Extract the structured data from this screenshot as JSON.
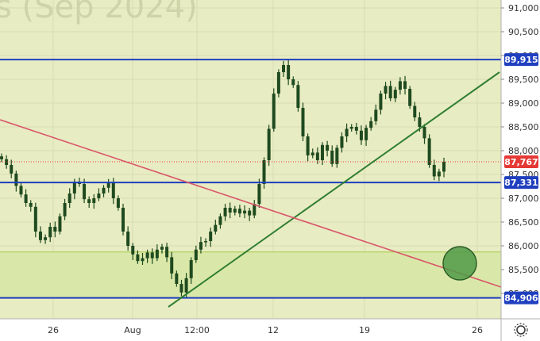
{
  "watermark": "s (Sep 2024)",
  "chart_data": {
    "type": "candlestick",
    "y_axis": {
      "range": [
        84700,
        91150
      ],
      "ticks": [
        {
          "value": 91000,
          "label": "91,000"
        },
        {
          "value": 90500,
          "label": "90,500"
        },
        {
          "value": 90000,
          "label": "90,000"
        },
        {
          "value": 89500,
          "label": "89,500"
        },
        {
          "value": 89000,
          "label": "89,000"
        },
        {
          "value": 88500,
          "label": "88,500"
        },
        {
          "value": 88000,
          "label": "88,000"
        },
        {
          "value": 87500,
          "label": "87,500"
        },
        {
          "value": 87000,
          "label": "87,000"
        },
        {
          "value": 86500,
          "label": "86,500"
        },
        {
          "value": 86000,
          "label": "86,000"
        },
        {
          "value": 85500,
          "label": "85,500"
        },
        {
          "value": 85000,
          "label": "85,000"
        }
      ]
    },
    "x_axis": {
      "ticks": [
        "26",
        "Aug",
        "12:00",
        "12",
        "19",
        "26"
      ]
    },
    "levels": [
      {
        "label": "89,915",
        "value": 89915,
        "color": "#1f3fbf"
      },
      {
        "label": "87,331",
        "value": 87331,
        "color": "#1f3fbf"
      },
      {
        "label": "84,906",
        "value": 84906,
        "color": "#1f3fbf"
      }
    ],
    "current_price": {
      "label": "87,767",
      "value": 87767,
      "color": "#e53935"
    },
    "zone": {
      "from": 84906,
      "to": 85870,
      "color": "#d9e8a8",
      "edge_color": "#a6c94a"
    },
    "target_marker": {
      "value": 85600,
      "color": "#4f9a47"
    },
    "trendlines": [
      {
        "name": "support",
        "color": "#2e7d32"
      },
      {
        "name": "resistance",
        "color": "#d9546a"
      }
    ],
    "prices": [
      87820,
      87700,
      87520,
      87260,
      87080,
      86900,
      86820,
      86300,
      86120,
      86180,
      86400,
      86300,
      86620,
      86900,
      87100,
      87350,
      87300,
      86980,
      86900,
      87000,
      87100,
      87220,
      87320,
      87000,
      86800,
      86300,
      86000,
      85820,
      85680,
      85740,
      85860,
      85740,
      85920,
      85980,
      85760,
      85420,
      85200,
      85020,
      85320,
      85700,
      85920,
      86080,
      86100,
      86300,
      86440,
      86620,
      86800,
      86700,
      86780,
      86680,
      86740,
      86640,
      86880,
      87300,
      87800,
      88460,
      89200,
      89650,
      89800,
      89500,
      89380,
      88900,
      88300,
      87900,
      87960,
      87800,
      88120,
      88000,
      87720,
      88060,
      88300,
      88460,
      88500,
      88420,
      88220,
      88480,
      88620,
      88860,
      89200,
      89360,
      89100,
      89280,
      89460,
      89300,
      88940,
      88700,
      88500,
      88260,
      87700,
      87460,
      87560,
      87767
    ]
  }
}
